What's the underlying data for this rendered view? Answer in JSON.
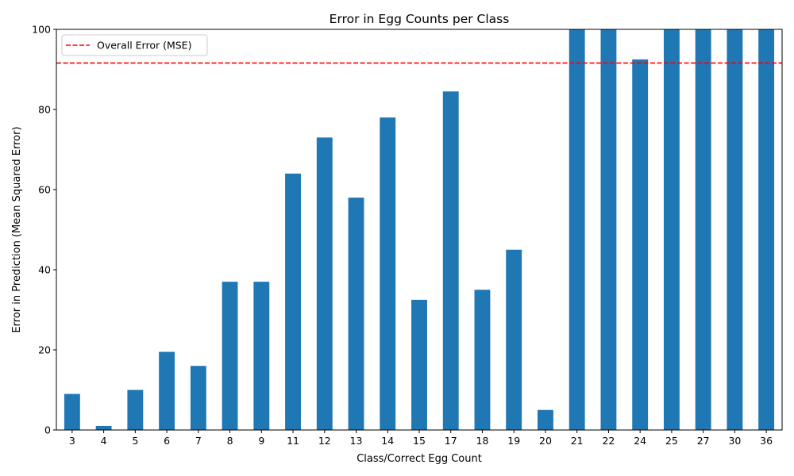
{
  "chart_data": {
    "type": "bar",
    "title": "Error in Egg Counts per Class",
    "xlabel": "Class/Correct Egg Count",
    "ylabel": "Error in Prediction (Mean Squared Error)",
    "ylim": [
      0,
      100
    ],
    "yticks": [
      0,
      20,
      40,
      60,
      80,
      100
    ],
    "categories": [
      "3",
      "4",
      "5",
      "6",
      "7",
      "8",
      "9",
      "11",
      "12",
      "13",
      "14",
      "15",
      "17",
      "18",
      "19",
      "20",
      "21",
      "22",
      "24",
      "25",
      "27",
      "30",
      "36"
    ],
    "values": [
      9,
      1,
      10,
      19.5,
      16,
      37,
      37,
      64,
      73,
      58,
      78,
      32.5,
      84.5,
      35,
      45,
      5,
      100,
      100,
      92.5,
      100,
      100,
      100,
      100
    ],
    "bar_color": "#1f77b4",
    "reference_line": {
      "name": "Overall Error (MSE)",
      "value": 91.6,
      "color": "#ff0000",
      "style": "dashed"
    },
    "legend": {
      "position": "top-left",
      "entries": [
        "Overall Error (MSE)"
      ]
    },
    "grid": false
  }
}
